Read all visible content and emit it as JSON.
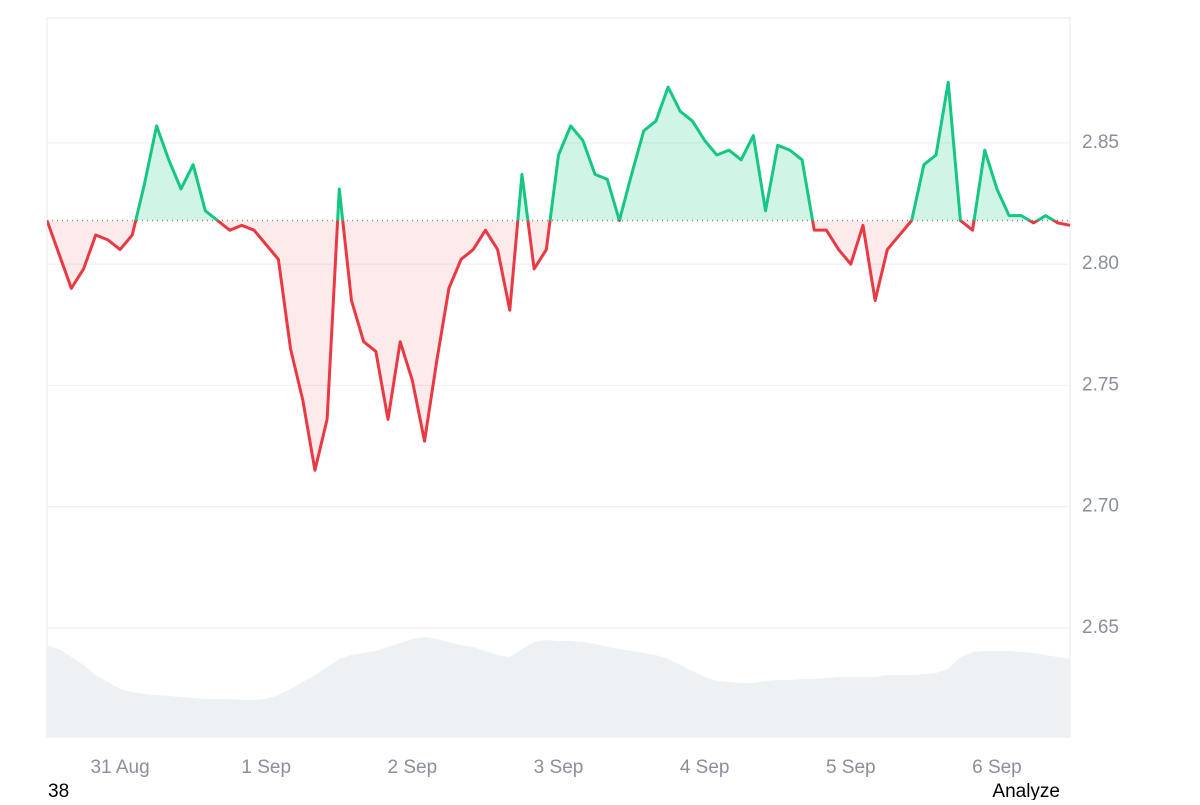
{
  "chart_data": {
    "type": "line",
    "categories": [
      null,
      null,
      null,
      null,
      null,
      null,
      "31 Aug",
      null,
      null,
      null,
      null,
      null,
      null,
      null,
      null,
      null,
      null,
      null,
      "1 Sep",
      null,
      null,
      null,
      null,
      null,
      null,
      null,
      null,
      null,
      null,
      null,
      "2 Sep",
      null,
      null,
      null,
      null,
      null,
      null,
      null,
      null,
      null,
      null,
      null,
      "3 Sep",
      null,
      null,
      null,
      null,
      null,
      null,
      null,
      null,
      null,
      null,
      null,
      "4 Sep",
      null,
      null,
      null,
      null,
      null,
      null,
      null,
      null,
      null,
      null,
      null,
      "5 Sep",
      null,
      null,
      null,
      null,
      null,
      null,
      null,
      null,
      null,
      null,
      null,
      "6 Sep",
      null,
      null,
      null,
      null,
      null,
      null
    ],
    "values": [
      2.818,
      2.804,
      2.79,
      2.798,
      2.812,
      2.81,
      2.806,
      2.812,
      2.833,
      2.857,
      2.843,
      2.831,
      2.841,
      2.822,
      2.818,
      2.814,
      2.816,
      2.814,
      2.808,
      2.802,
      2.765,
      2.744,
      2.715,
      2.736,
      2.831,
      2.785,
      2.768,
      2.764,
      2.736,
      2.768,
      2.752,
      2.727,
      2.76,
      2.79,
      2.802,
      2.806,
      2.814,
      2.806,
      2.781,
      2.837,
      2.798,
      2.806,
      2.845,
      2.857,
      2.851,
      2.837,
      2.835,
      2.818,
      2.837,
      2.855,
      2.859,
      2.873,
      2.863,
      2.859,
      2.851,
      2.845,
      2.847,
      2.843,
      2.853,
      2.822,
      2.849,
      2.847,
      2.843,
      2.814,
      2.814,
      2.806,
      2.8,
      2.816,
      2.785,
      2.806,
      2.812,
      2.818,
      2.841,
      2.845,
      2.875,
      2.818,
      2.814,
      2.847,
      2.831,
      2.82,
      2.82,
      2.817,
      2.82,
      2.817,
      2.816
    ],
    "baseline": 2.818,
    "colors": {
      "above": "#16c784",
      "below": "#ea3943"
    },
    "ylim": [
      2.605,
      2.9015
    ],
    "yticks": [
      2.65,
      {
        "value": 2.7,
        "label": "2.70"
      },
      2.75,
      {
        "value": 2.8,
        "label": "2.80"
      },
      2.85
    ],
    "grid": true,
    "volume": {
      "color": "#eef1f4",
      "y2lim": [
        0,
        719
      ],
      "values": [
        92,
        88,
        80,
        72,
        62,
        55,
        48,
        45,
        43,
        42,
        41,
        40,
        39,
        38,
        38,
        38,
        37,
        37,
        38,
        42,
        48,
        55,
        62,
        70,
        78,
        82,
        84,
        86,
        90,
        94,
        98,
        100,
        98,
        95,
        92,
        90,
        86,
        82,
        80,
        88,
        95,
        97,
        96,
        96,
        95,
        93,
        90,
        88,
        86,
        84,
        82,
        78,
        72,
        66,
        60,
        56,
        55,
        54,
        54,
        56,
        57,
        57,
        58,
        58,
        59,
        60,
        60,
        60,
        60,
        62,
        62,
        62,
        63,
        64,
        68,
        80,
        85,
        86,
        86,
        86,
        85,
        84,
        82,
        80,
        78
      ]
    }
  },
  "footer": {
    "left": "38",
    "right": "Analyze"
  }
}
